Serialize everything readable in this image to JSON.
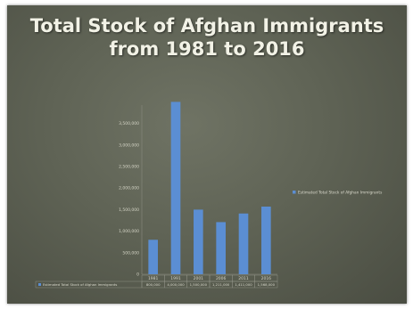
{
  "slide": {
    "title_line1": "Total Stock of Afghan Immigrants",
    "title_line2": "from 1981 to 2016"
  },
  "colors": {
    "bar": "#5b8ed3",
    "background": "#5f6355",
    "title_text": "#f2f2e6"
  },
  "chart_data": {
    "type": "bar",
    "title": "",
    "xlabel": "",
    "ylabel": "",
    "categories": [
      "1981",
      "1991",
      "2001",
      "2006",
      "2011",
      "2016"
    ],
    "series": [
      {
        "name": "Estimated Total Stock of Afghan Immigrants",
        "values": [
          800000,
          4000000,
          1500000,
          1210000,
          1410000,
          1570000
        ],
        "table_labels": [
          "800,000",
          "4,000,000",
          "1,500,000",
          "1,211,000",
          "1,411,000",
          "1,568,000"
        ]
      }
    ],
    "yticks": [
      "0",
      "500,000",
      "1,000,000",
      "1,500,000",
      "2,000,000",
      "2,500,000",
      "3,000,000",
      "3,500,000"
    ],
    "ylim": [
      0,
      4000000
    ],
    "grid": false,
    "legend": "right",
    "data_table": true
  }
}
